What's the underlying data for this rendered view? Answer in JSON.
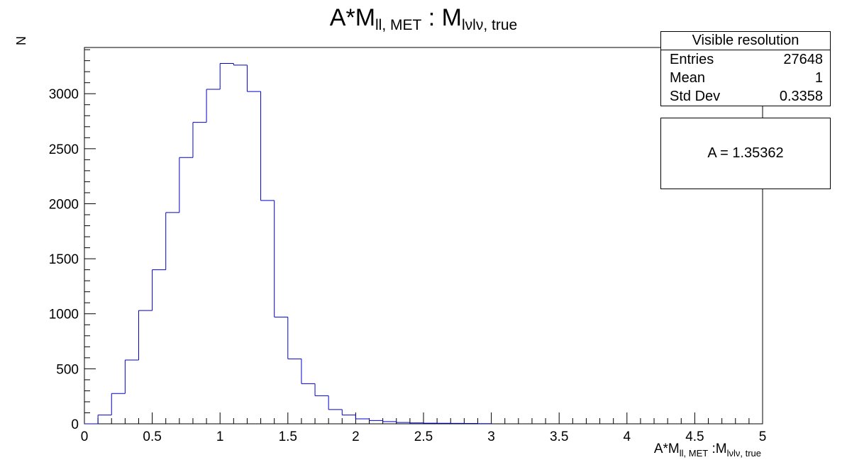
{
  "chart_data": {
    "type": "bar",
    "style": "step-histogram",
    "title": "A*M_{ll, MET} : M_{lνlν, true}",
    "xlabel": "A*M_{ll, MET} :M_{lνlν, true}",
    "ylabel": "N",
    "xlim": [
      0,
      5
    ],
    "ylim": [
      0,
      3420
    ],
    "bin_width": 0.1,
    "x_ticks": [
      "0",
      "0.5",
      "1",
      "1.5",
      "2",
      "2.5",
      "3",
      "3.5",
      "4",
      "4.5",
      "5"
    ],
    "y_ticks": [
      "0",
      "500",
      "1000",
      "1500",
      "2000",
      "2500",
      "3000"
    ],
    "bin_lefts": [
      0.0,
      0.1,
      0.2,
      0.3,
      0.4,
      0.5,
      0.6,
      0.7,
      0.8,
      0.9,
      1.0,
      1.1,
      1.2,
      1.3,
      1.4,
      1.5,
      1.6,
      1.7,
      1.8,
      1.9,
      2.0,
      2.1,
      2.2,
      2.3,
      2.4,
      2.5,
      2.6,
      2.7,
      2.8,
      2.9
    ],
    "values": [
      0,
      80,
      275,
      580,
      1030,
      1400,
      1920,
      2420,
      2740,
      3040,
      3275,
      3260,
      3020,
      2030,
      970,
      590,
      365,
      255,
      130,
      80,
      45,
      30,
      20,
      12,
      8,
      6,
      5,
      4,
      3,
      2
    ],
    "line_color": "#0000cc",
    "grid": false
  },
  "titles": {
    "main": "A*M",
    "main_sub1": "ll, MET",
    "main_mid": " : M",
    "main_sub2": "lνlν, true",
    "y": "N",
    "x_main": "A*M",
    "x_sub1": "ll, MET",
    "x_mid": " :M",
    "x_sub2": "lνlν, true"
  },
  "stats_box": {
    "header": "Visible resolution",
    "rows": [
      {
        "label": "Entries",
        "value": "27648"
      },
      {
        "label": "Mean",
        "value": "1"
      },
      {
        "label": "Std Dev",
        "value": "0.3358"
      }
    ]
  },
  "fit_box": {
    "text": "A = 1.35362"
  }
}
